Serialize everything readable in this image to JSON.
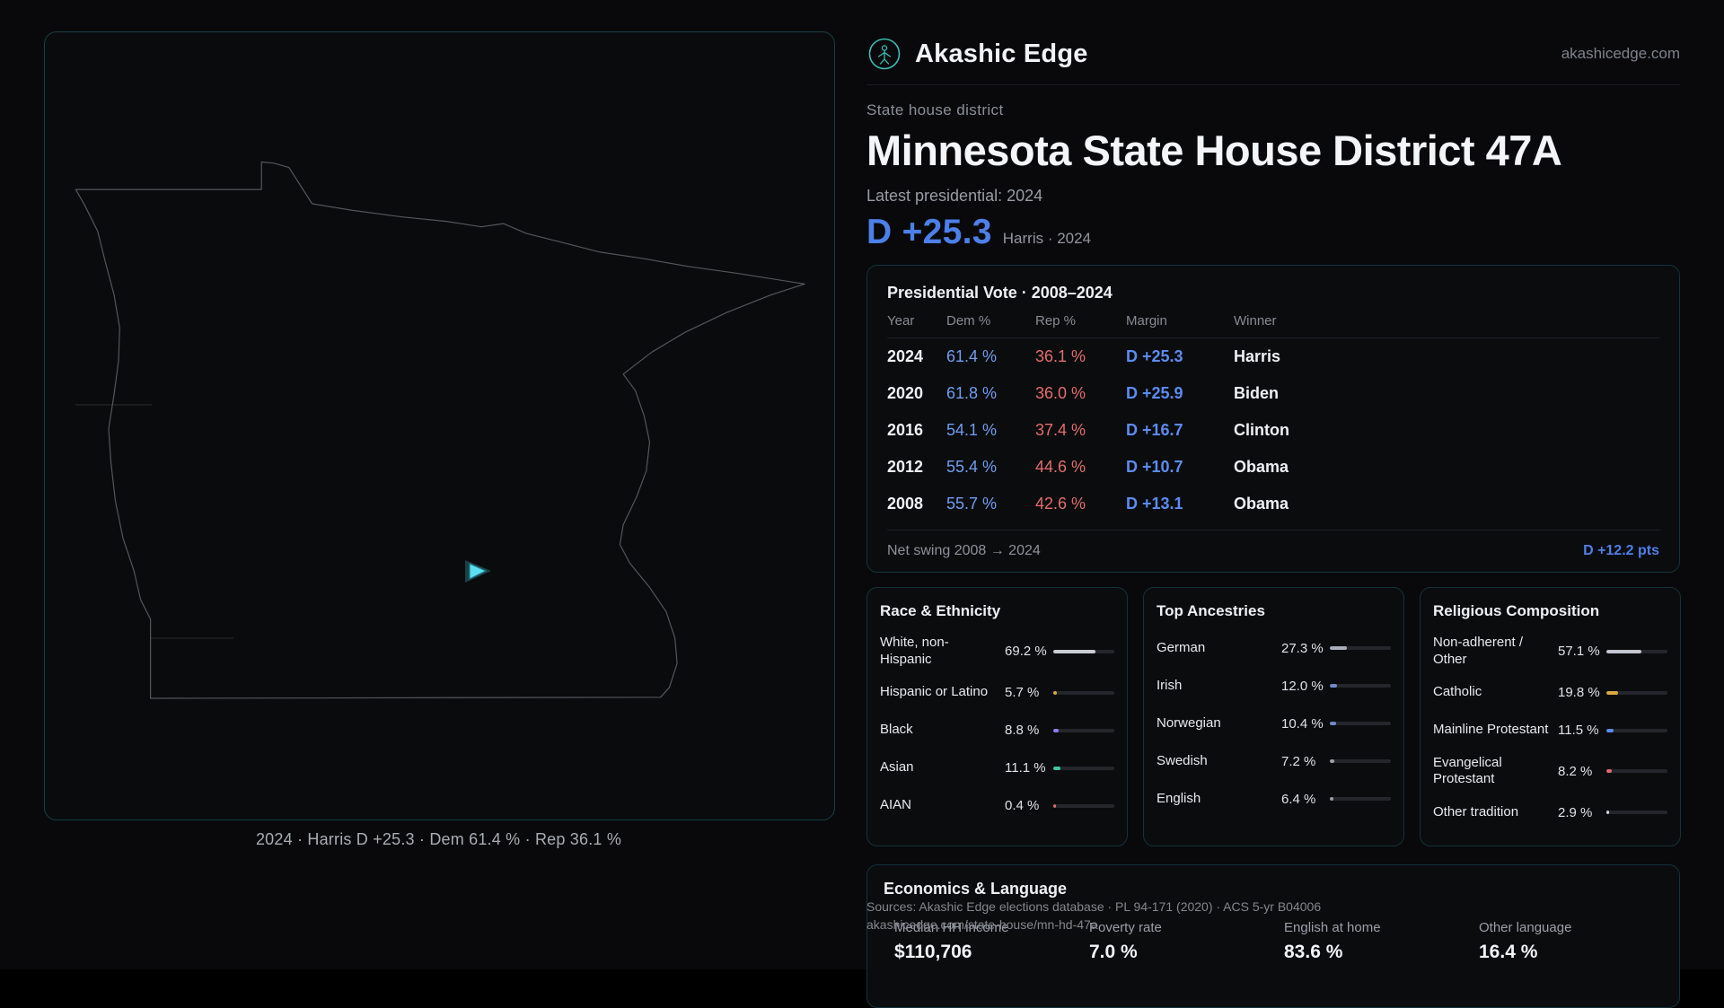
{
  "brand": {
    "name": "Akashic Edge",
    "domain": "akashicedge.com"
  },
  "page": {
    "eyebrow": "State house district",
    "title": "Minnesota State House District 47A",
    "latest_label": "Latest presidential: 2024",
    "headline_margin": "D +25.3",
    "headline_sub": "Harris · 2024"
  },
  "map": {
    "caption": "2024 · Harris D +25.3 · Dem 61.4 % · Rep 36.1 %"
  },
  "pres": {
    "title": "Presidential Vote · 2008–2024",
    "headers": {
      "year": "Year",
      "dem": "Dem %",
      "rep": "Rep %",
      "margin": "Margin",
      "winner": "Winner"
    },
    "rows": [
      {
        "year": "2024",
        "dem": "61.4 %",
        "rep": "36.1 %",
        "margin": "D +25.3",
        "winner": "Harris"
      },
      {
        "year": "2020",
        "dem": "61.8 %",
        "rep": "36.0 %",
        "margin": "D +25.9",
        "winner": "Biden"
      },
      {
        "year": "2016",
        "dem": "54.1 %",
        "rep": "37.4 %",
        "margin": "D +16.7",
        "winner": "Clinton"
      },
      {
        "year": "2012",
        "dem": "55.4 %",
        "rep": "44.6 %",
        "margin": "D +10.7",
        "winner": "Obama"
      },
      {
        "year": "2008",
        "dem": "55.7 %",
        "rep": "42.6 %",
        "margin": "D +13.1",
        "winner": "Obama"
      }
    ],
    "net_swing_label": "Net swing 2008 → 2024",
    "net_swing_value": "D +12.2 pts"
  },
  "race": {
    "title": "Race & Ethnicity",
    "rows": [
      {
        "label": "White, non-Hispanic",
        "value": "69.2 %",
        "pct": 69.2,
        "color": "#c9cdd6"
      },
      {
        "label": "Hispanic or Latino",
        "value": "5.7 %",
        "pct": 5.7,
        "color": "#dfa43f"
      },
      {
        "label": "Black",
        "value": "8.8 %",
        "pct": 8.8,
        "color": "#8d7df2"
      },
      {
        "label": "Asian",
        "value": "11.1 %",
        "pct": 11.1,
        "color": "#3fc6a0"
      },
      {
        "label": "AIAN",
        "value": "0.4 %",
        "pct": 0.4,
        "color": "#de6a6a"
      }
    ]
  },
  "ancestries": {
    "title": "Top Ancestries",
    "rows": [
      {
        "label": "German",
        "value": "27.3 %",
        "pct": 27.3,
        "color": "#a9aeb9"
      },
      {
        "label": "Irish",
        "value": "12.0 %",
        "pct": 12.0,
        "color": "#7389c6"
      },
      {
        "label": "Norwegian",
        "value": "10.4 %",
        "pct": 10.4,
        "color": "#7389c6"
      },
      {
        "label": "Swedish",
        "value": "7.2 %",
        "pct": 7.2,
        "color": "#99a0ad"
      },
      {
        "label": "English",
        "value": "6.4 %",
        "pct": 6.4,
        "color": "#99a0ad"
      }
    ]
  },
  "religion": {
    "title": "Religious Composition",
    "rows": [
      {
        "label": "Non-adherent / Other",
        "value": "57.1 %",
        "pct": 57.1,
        "color": "#c3c7d0"
      },
      {
        "label": "Catholic",
        "value": "19.8 %",
        "pct": 19.8,
        "color": "#d9a93f"
      },
      {
        "label": "Mainline Protestant",
        "value": "11.5 %",
        "pct": 11.5,
        "color": "#5d8bec"
      },
      {
        "label": "Evangelical Protestant",
        "value": "8.2 %",
        "pct": 8.2,
        "color": "#dd6a6a"
      },
      {
        "label": "Other tradition",
        "value": "2.9 %",
        "pct": 2.9,
        "color": "#d6d9e0"
      }
    ]
  },
  "econ": {
    "title": "Economics & Language",
    "stats": [
      {
        "label": "Median HH income",
        "value": "$110,706"
      },
      {
        "label": "Poverty rate",
        "value": "7.0 %"
      },
      {
        "label": "English at home",
        "value": "83.6 %"
      },
      {
        "label": "Other language",
        "value": "16.4 %"
      }
    ]
  },
  "footer": {
    "line1": "Sources: Akashic Edge elections database · PL 94-171 (2020) · ACS 5-yr B04006",
    "line2": "akashicedge.com/state-house/mn-hd-47a"
  },
  "colors": {
    "dem": "#4d7fe8",
    "rep": "#e26d6d",
    "accent_teal": "#3bbdb4",
    "marker_cyan": "#59dff0"
  }
}
